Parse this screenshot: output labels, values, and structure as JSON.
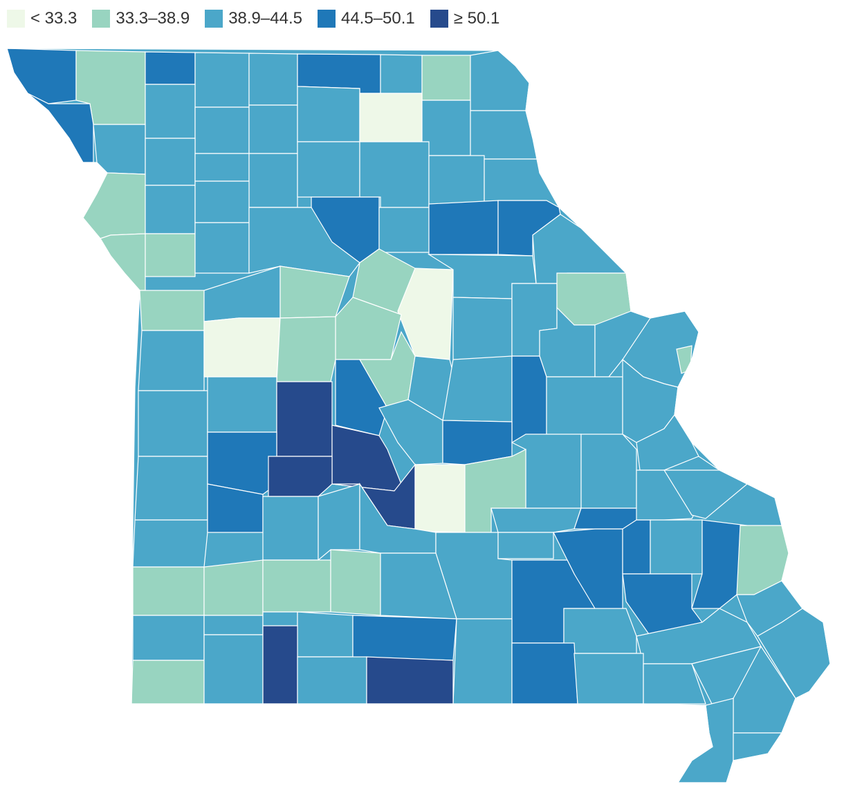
{
  "legend": {
    "items": [
      {
        "label": "< 33.3",
        "color": "#eef8e8"
      },
      {
        "label": "33.3–38.9",
        "color": "#98d4c0"
      },
      {
        "label": "38.9–44.5",
        "color": "#4ba7c9"
      },
      {
        "label": "44.5–50.1",
        "color": "#1f78b8"
      },
      {
        "label": "≥ 50.1",
        "color": "#264a8c"
      }
    ]
  },
  "map": {
    "region": "Missouri",
    "unit": "county",
    "background_color": "#4ba7c9",
    "border_color": "#ffffff"
  }
}
